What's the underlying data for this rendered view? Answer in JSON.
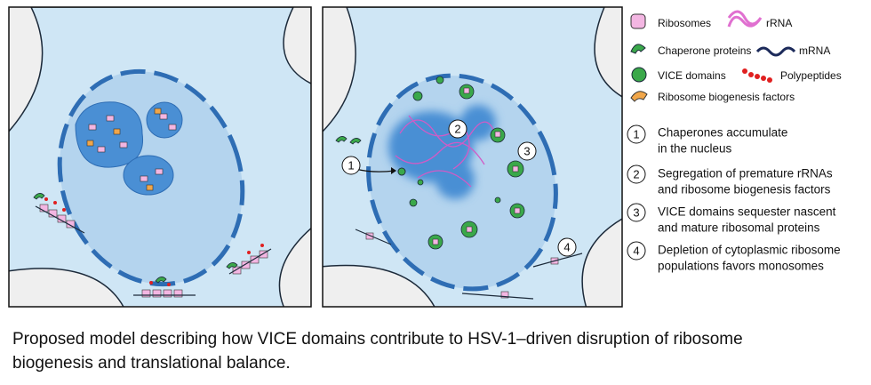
{
  "legend": {
    "items": [
      {
        "label": "Ribosomes"
      },
      {
        "label": "rRNA"
      },
      {
        "label": "Chaperone proteins"
      },
      {
        "label": "mRNA"
      },
      {
        "label": "VICE domains"
      },
      {
        "label": "Polypeptides"
      },
      {
        "label": "Ribosome biogenesis factors"
      }
    ]
  },
  "steps": [
    {
      "number": "1",
      "lines": [
        "Chaperones accumulate",
        "in the nucleus"
      ]
    },
    {
      "number": "2",
      "lines": [
        "Segregation of premature rRNAs",
        "and ribosome biogenesis factors"
      ]
    },
    {
      "number": "3",
      "lines": [
        "VICE domains sequester nascent",
        "and mature ribosomal proteins"
      ]
    },
    {
      "number": "4",
      "lines": [
        "Depletion of cytoplasmic ribosome",
        "populations favors monosomes"
      ]
    }
  ],
  "caption": [
    "Proposed model describing how VICE domains contribute to HSV-1–driven disruption of ribosome",
    "biogenesis and translational balance."
  ]
}
